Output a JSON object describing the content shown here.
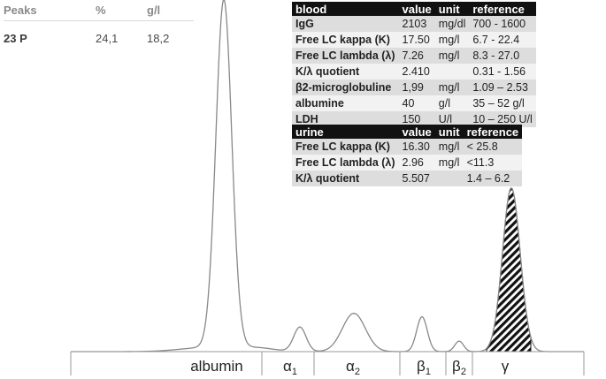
{
  "peaks_table": {
    "headers": [
      "Peaks",
      "%",
      "g/l"
    ],
    "rows": [
      [
        "23 P",
        "24,1",
        "18,2"
      ]
    ]
  },
  "blood_table": {
    "headers": [
      "blood",
      "value",
      "unit",
      "reference"
    ],
    "rows": [
      [
        "IgG",
        "2103",
        "mg/dl",
        "700 - 1600"
      ],
      [
        "Free LC kappa (K)",
        "17.50",
        "mg/l",
        "6.7 - 22.4"
      ],
      [
        "Free LC lambda (λ)",
        "7.26",
        "mg/l",
        "8.3 - 27.0"
      ],
      [
        "K/λ quotient",
        "2.410",
        "",
        "0.31 - 1.56"
      ],
      [
        "β2-microglobuline",
        "1,99",
        "mg/l",
        "1.09 – 2.53"
      ],
      [
        "albumine",
        "40",
        "g/l",
        "35 – 52 g/l"
      ],
      [
        "LDH",
        "150",
        "U/l",
        "10 – 250 U/l"
      ]
    ]
  },
  "urine_table": {
    "headers": [
      "urine",
      "value",
      "unit",
      "reference"
    ],
    "rows": [
      [
        "Free LC kappa (K)",
        "16.30",
        "mg/l",
        "< 25.8"
      ],
      [
        "Free LC lambda (λ)",
        "2.96",
        "mg/l",
        "<11.3"
      ],
      [
        "K/λ quotient",
        "5.507",
        "",
        "1.4 – 6.2"
      ]
    ]
  },
  "chart_data": {
    "type": "line",
    "title": "",
    "xlabel": "",
    "ylabel": "",
    "fractions": [
      {
        "name": "albumin",
        "main": "albumin",
        "sub": ""
      },
      {
        "name": "α1",
        "main": "α",
        "sub": "1"
      },
      {
        "name": "α2",
        "main": "α",
        "sub": "2"
      },
      {
        "name": "β1",
        "main": "β",
        "sub": "1"
      },
      {
        "name": "β2",
        "main": "β",
        "sub": "2"
      },
      {
        "name": "γ",
        "main": "γ",
        "sub": ""
      }
    ],
    "peaks": [
      {
        "fraction": "albumin",
        "relative_height": 1.0
      },
      {
        "fraction": "α1",
        "relative_height": 0.07
      },
      {
        "fraction": "α2",
        "relative_height": 0.11
      },
      {
        "fraction": "β1",
        "relative_height": 0.1
      },
      {
        "fraction": "β2",
        "relative_height": 0.03
      },
      {
        "fraction": "γ",
        "relative_height": 0.47,
        "shaded": true
      }
    ],
    "colors": {
      "curve": "#888888",
      "baseline": "#999999",
      "hatch": "#111111"
    }
  }
}
